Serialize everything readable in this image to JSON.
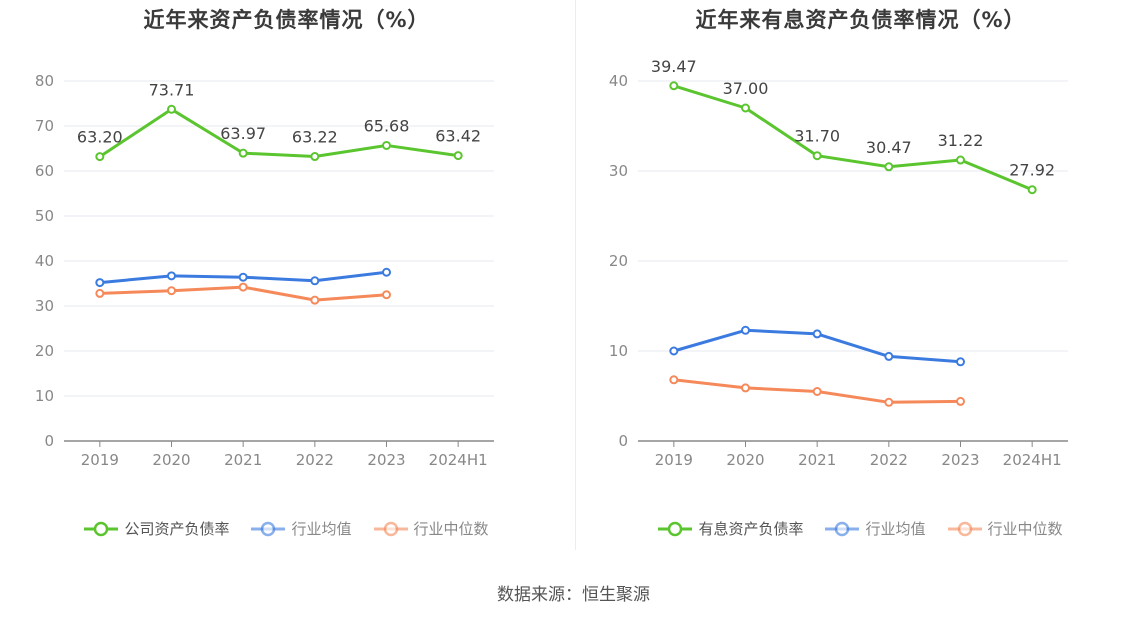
{
  "source": "数据来源：恒生聚源",
  "chart_data": [
    {
      "type": "line",
      "title": "近年来资产负债率情况（%）",
      "categories": [
        "2019",
        "2020",
        "2021",
        "2022",
        "2023",
        "2024H1"
      ],
      "ylim": [
        0,
        80
      ],
      "yticks": [
        0,
        10,
        20,
        30,
        40,
        50,
        60,
        70,
        80
      ],
      "grid": true,
      "legend_position": "bottom",
      "series": [
        {
          "name": "公司资产负债率",
          "color": "#5ac52e",
          "values": [
            63.2,
            73.71,
            63.97,
            63.22,
            65.68,
            63.42
          ],
          "labels": [
            "63.20",
            "73.71",
            "63.97",
            "63.22",
            "65.68",
            "63.42"
          ]
        },
        {
          "name": "行业均值",
          "color": "#3b7be0",
          "values": [
            35.2,
            36.7,
            36.4,
            35.6,
            37.5,
            null
          ]
        },
        {
          "name": "行业中位数",
          "color": "#f5895a",
          "values": [
            32.8,
            33.4,
            34.2,
            31.3,
            32.5,
            null
          ]
        }
      ]
    },
    {
      "type": "line",
      "title": "近年来有息资产负债率情况（%）",
      "categories": [
        "2019",
        "2020",
        "2021",
        "2022",
        "2023",
        "2024H1"
      ],
      "ylim": [
        0,
        40
      ],
      "yticks": [
        0,
        10,
        20,
        30,
        40
      ],
      "grid": true,
      "legend_position": "bottom",
      "series": [
        {
          "name": "有息资产负债率",
          "color": "#5ac52e",
          "values": [
            39.47,
            37.0,
            31.7,
            30.47,
            31.22,
            27.92
          ],
          "labels": [
            "39.47",
            "37.00",
            "31.70",
            "30.47",
            "31.22",
            "27.92"
          ]
        },
        {
          "name": "行业均值",
          "color": "#3b7be0",
          "values": [
            10.0,
            12.3,
            11.9,
            9.4,
            8.8,
            null
          ]
        },
        {
          "name": "行业中位数",
          "color": "#f5895a",
          "values": [
            6.8,
            5.9,
            5.5,
            4.3,
            4.4,
            null
          ]
        }
      ]
    }
  ]
}
